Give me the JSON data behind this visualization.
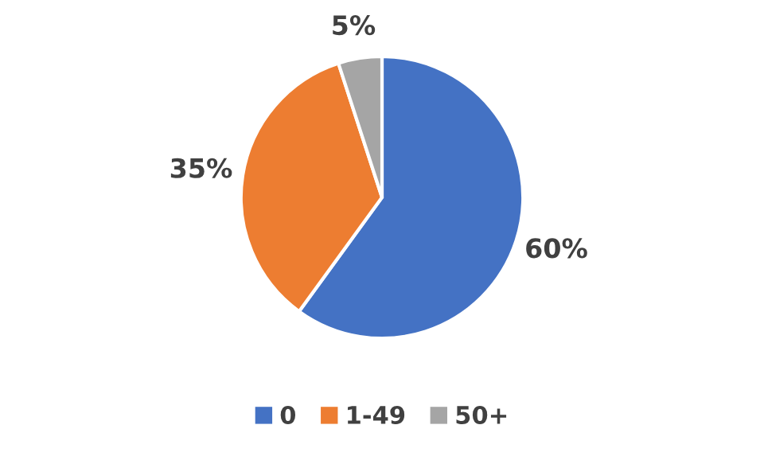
{
  "chart_data": {
    "type": "pie",
    "categories": [
      "0",
      "1-49",
      "50+"
    ],
    "values": [
      60,
      35,
      5
    ],
    "colors": [
      "#4472c4",
      "#ed7d31",
      "#a5a5a5"
    ],
    "value_labels": [
      "60%",
      "35%",
      "5%"
    ],
    "legend": "bottom"
  }
}
